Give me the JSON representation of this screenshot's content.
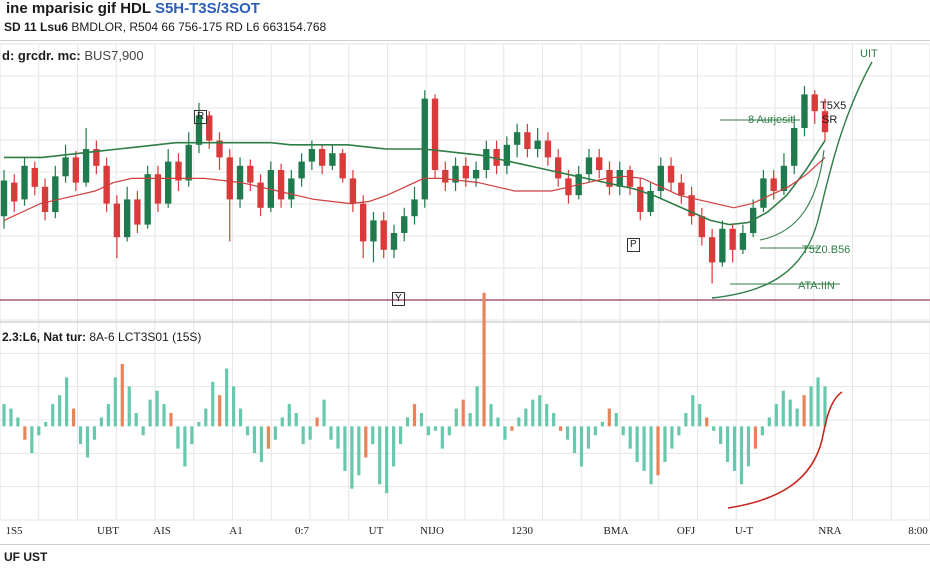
{
  "header": {
    "title_part1": "ine mparisic gif HDL",
    "title_part2": "S5H-T3S/3SOT",
    "subtitle_bold": "SD 11 Lsu6",
    "subtitle_rest": "BMDLOR, R504 66 756-175 RD L6 663154.768"
  },
  "top_panel": {
    "legend_bold": "d: grcdr. mc:",
    "legend_value": "BUS7,900",
    "ma_label_green": "8 Aurjesit",
    "annot_top": "T5X5",
    "annot_sr": "SR",
    "annot_ut": "UIT",
    "annot_mid": "T5Z0.B56",
    "annot_low": "ATA:IIN",
    "marker_r": "R",
    "marker_y": "Y",
    "marker_p": "P"
  },
  "bottom_panel": {
    "legend_bold": "2.3:L6, Nat tur:",
    "legend_value": "8A-6 LCT3S01 (15S)"
  },
  "footer": {
    "label": "UF UST"
  },
  "colors": {
    "up": "#1f7a4d",
    "down": "#d93a3a",
    "ma_green": "#2f7d46",
    "ma_red": "#cf3d3d",
    "hist_pos": "#66c8ad",
    "hist_neg": "#e8835a",
    "baseline": "#9a3a5a",
    "grid": "#e6e6e6"
  },
  "chart_data": {
    "type": "candlestick",
    "x_tick_labels": [
      "1S5",
      "UBT",
      "AIS",
      "A1",
      "0:7",
      "UT",
      "NIJO",
      "1230",
      "BMA",
      "OFJ",
      "U-T",
      "NRA",
      "8:00"
    ],
    "price_range": [
      0,
      100
    ],
    "candles": [
      {
        "o": 38,
        "c": 55,
        "h": 60,
        "l": 32
      },
      {
        "o": 54,
        "c": 45,
        "h": 58,
        "l": 40
      },
      {
        "o": 46,
        "c": 62,
        "h": 66,
        "l": 43
      },
      {
        "o": 61,
        "c": 52,
        "h": 64,
        "l": 48
      },
      {
        "o": 52,
        "c": 40,
        "h": 56,
        "l": 36
      },
      {
        "o": 40,
        "c": 57,
        "h": 62,
        "l": 37
      },
      {
        "o": 57,
        "c": 66,
        "h": 72,
        "l": 54
      },
      {
        "o": 66,
        "c": 54,
        "h": 69,
        "l": 50
      },
      {
        "o": 54,
        "c": 70,
        "h": 80,
        "l": 52
      },
      {
        "o": 70,
        "c": 62,
        "h": 74,
        "l": 58
      },
      {
        "o": 62,
        "c": 44,
        "h": 66,
        "l": 40
      },
      {
        "o": 44,
        "c": 28,
        "h": 48,
        "l": 18
      },
      {
        "o": 28,
        "c": 46,
        "h": 52,
        "l": 26
      },
      {
        "o": 46,
        "c": 34,
        "h": 50,
        "l": 30
      },
      {
        "o": 34,
        "c": 58,
        "h": 62,
        "l": 32
      },
      {
        "o": 58,
        "c": 44,
        "h": 62,
        "l": 40
      },
      {
        "o": 44,
        "c": 64,
        "h": 70,
        "l": 42
      },
      {
        "o": 64,
        "c": 55,
        "h": 68,
        "l": 50
      },
      {
        "o": 55,
        "c": 72,
        "h": 78,
        "l": 52
      },
      {
        "o": 72,
        "c": 86,
        "h": 92,
        "l": 68
      },
      {
        "o": 86,
        "c": 74,
        "h": 88,
        "l": 70
      },
      {
        "o": 74,
        "c": 66,
        "h": 78,
        "l": 60
      },
      {
        "o": 66,
        "c": 46,
        "h": 70,
        "l": 26
      },
      {
        "o": 46,
        "c": 62,
        "h": 66,
        "l": 42
      },
      {
        "o": 62,
        "c": 54,
        "h": 65,
        "l": 50
      },
      {
        "o": 54,
        "c": 42,
        "h": 58,
        "l": 38
      },
      {
        "o": 42,
        "c": 60,
        "h": 64,
        "l": 40
      },
      {
        "o": 60,
        "c": 46,
        "h": 63,
        "l": 42
      },
      {
        "o": 46,
        "c": 56,
        "h": 60,
        "l": 42
      },
      {
        "o": 56,
        "c": 64,
        "h": 68,
        "l": 52
      },
      {
        "o": 64,
        "c": 70,
        "h": 74,
        "l": 60
      },
      {
        "o": 70,
        "c": 62,
        "h": 72,
        "l": 58
      },
      {
        "o": 62,
        "c": 68,
        "h": 72,
        "l": 60
      },
      {
        "o": 68,
        "c": 56,
        "h": 70,
        "l": 54
      },
      {
        "o": 56,
        "c": 44,
        "h": 60,
        "l": 40
      },
      {
        "o": 44,
        "c": 26,
        "h": 48,
        "l": 18
      },
      {
        "o": 26,
        "c": 36,
        "h": 40,
        "l": 16
      },
      {
        "o": 36,
        "c": 22,
        "h": 40,
        "l": 18
      },
      {
        "o": 22,
        "c": 30,
        "h": 34,
        "l": 18
      },
      {
        "o": 30,
        "c": 38,
        "h": 42,
        "l": 26
      },
      {
        "o": 38,
        "c": 46,
        "h": 52,
        "l": 34
      },
      {
        "o": 46,
        "c": 94,
        "h": 98,
        "l": 42
      },
      {
        "o": 94,
        "c": 60,
        "h": 96,
        "l": 56
      },
      {
        "o": 60,
        "c": 54,
        "h": 64,
        "l": 50
      },
      {
        "o": 54,
        "c": 62,
        "h": 66,
        "l": 50
      },
      {
        "o": 62,
        "c": 56,
        "h": 66,
        "l": 52
      },
      {
        "o": 56,
        "c": 60,
        "h": 64,
        "l": 52
      },
      {
        "o": 60,
        "c": 70,
        "h": 74,
        "l": 56
      },
      {
        "o": 70,
        "c": 62,
        "h": 74,
        "l": 58
      },
      {
        "o": 62,
        "c": 72,
        "h": 76,
        "l": 58
      },
      {
        "o": 72,
        "c": 78,
        "h": 82,
        "l": 66
      },
      {
        "o": 78,
        "c": 70,
        "h": 82,
        "l": 66
      },
      {
        "o": 70,
        "c": 74,
        "h": 80,
        "l": 66
      },
      {
        "o": 74,
        "c": 66,
        "h": 78,
        "l": 62
      },
      {
        "o": 66,
        "c": 56,
        "h": 70,
        "l": 52
      },
      {
        "o": 56,
        "c": 48,
        "h": 60,
        "l": 44
      },
      {
        "o": 48,
        "c": 58,
        "h": 62,
        "l": 46
      },
      {
        "o": 58,
        "c": 66,
        "h": 70,
        "l": 54
      },
      {
        "o": 66,
        "c": 60,
        "h": 70,
        "l": 56
      },
      {
        "o": 60,
        "c": 52,
        "h": 64,
        "l": 48
      },
      {
        "o": 52,
        "c": 60,
        "h": 64,
        "l": 48
      },
      {
        "o": 60,
        "c": 52,
        "h": 62,
        "l": 48
      },
      {
        "o": 52,
        "c": 40,
        "h": 56,
        "l": 36
      },
      {
        "o": 40,
        "c": 50,
        "h": 54,
        "l": 38
      },
      {
        "o": 50,
        "c": 62,
        "h": 66,
        "l": 46
      },
      {
        "o": 62,
        "c": 54,
        "h": 66,
        "l": 50
      },
      {
        "o": 54,
        "c": 48,
        "h": 58,
        "l": 44
      },
      {
        "o": 48,
        "c": 38,
        "h": 52,
        "l": 34
      },
      {
        "o": 38,
        "c": 28,
        "h": 42,
        "l": 24
      },
      {
        "o": 28,
        "c": 16,
        "h": 32,
        "l": 6
      },
      {
        "o": 16,
        "c": 32,
        "h": 36,
        "l": 14
      },
      {
        "o": 32,
        "c": 22,
        "h": 34,
        "l": 16
      },
      {
        "o": 22,
        "c": 30,
        "h": 34,
        "l": 20
      },
      {
        "o": 30,
        "c": 42,
        "h": 46,
        "l": 28
      },
      {
        "o": 42,
        "c": 56,
        "h": 60,
        "l": 40
      },
      {
        "o": 56,
        "c": 50,
        "h": 60,
        "l": 46
      },
      {
        "o": 50,
        "c": 62,
        "h": 68,
        "l": 48
      },
      {
        "o": 62,
        "c": 80,
        "h": 86,
        "l": 58
      },
      {
        "o": 80,
        "c": 96,
        "h": 100,
        "l": 76
      },
      {
        "o": 96,
        "c": 88,
        "h": 98,
        "l": 82
      },
      {
        "o": 88,
        "c": 78,
        "h": 94,
        "l": 74
      }
    ],
    "ma_green": [
      66,
      66,
      66,
      67,
      68,
      69,
      70,
      71,
      72,
      73,
      73,
      73,
      73,
      73,
      73,
      72,
      72,
      72,
      72,
      71,
      70,
      70,
      70,
      69,
      68,
      67,
      65,
      63,
      61,
      59,
      57,
      55,
      53,
      51,
      48,
      44,
      40,
      36,
      34,
      35,
      40,
      48,
      60,
      74
    ],
    "ma_red": [
      36,
      40,
      44,
      46,
      48,
      50,
      54,
      56,
      56,
      56,
      56,
      56,
      55,
      54,
      52,
      50,
      48,
      46,
      45,
      44,
      45,
      48,
      52,
      56,
      56,
      55,
      54,
      52,
      50,
      50,
      50,
      52,
      54,
      56,
      57,
      56,
      52,
      48,
      46,
      44,
      42,
      44,
      48,
      52,
      58,
      66
    ],
    "histogram": [
      10,
      8,
      4,
      -6,
      -12,
      -4,
      2,
      10,
      14,
      22,
      8,
      -8,
      -14,
      -6,
      4,
      10,
      22,
      28,
      18,
      6,
      -4,
      12,
      16,
      10,
      6,
      -10,
      -18,
      -8,
      2,
      8,
      20,
      14,
      26,
      18,
      8,
      -4,
      -12,
      -16,
      -10,
      -6,
      4,
      10,
      6,
      -8,
      -6,
      4,
      12,
      -6,
      -10,
      -20,
      -28,
      -22,
      -14,
      -8,
      -26,
      -30,
      -18,
      -8,
      4,
      10,
      6,
      -4,
      -2,
      -10,
      -4,
      8,
      12,
      6,
      18,
      60,
      10,
      4,
      -6,
      -2,
      4,
      8,
      12,
      14,
      10,
      6,
      -2,
      -6,
      -12,
      -18,
      -10,
      -4,
      2,
      8,
      6,
      -4,
      -10,
      -16,
      -20,
      -26,
      -22,
      -16,
      -10,
      -4,
      6,
      14,
      10,
      4,
      -2,
      -8,
      -16,
      -20,
      -26,
      -18,
      -10,
      -4,
      4,
      10,
      16,
      12,
      8,
      14,
      18,
      22,
      18
    ],
    "hist_range": [
      -40,
      70
    ]
  }
}
